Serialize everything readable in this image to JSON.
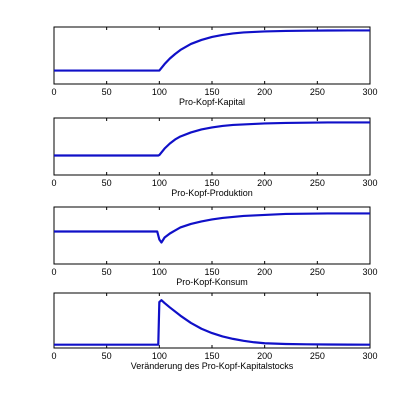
{
  "chart_data": [
    {
      "type": "line",
      "xlabel": "Pro-Kopf-Kapital",
      "xlim": [
        0,
        300
      ],
      "xticks": [
        "0",
        "50",
        "100",
        "150",
        "200",
        "250",
        "300"
      ],
      "ylim": [
        0,
        1
      ],
      "series": [
        {
          "x": [
            0,
            99,
            100,
            105,
            110,
            115,
            120,
            130,
            140,
            150,
            160,
            170,
            180,
            190,
            200,
            220,
            240,
            260,
            280,
            300
          ],
          "y": [
            0.2,
            0.2,
            0.2,
            0.33,
            0.44,
            0.53,
            0.61,
            0.73,
            0.81,
            0.87,
            0.91,
            0.94,
            0.96,
            0.97,
            0.98,
            0.99,
            0.995,
            0.998,
            1.0,
            1.0
          ]
        }
      ]
    },
    {
      "type": "line",
      "xlabel": "Pro-Kopf-Produktion",
      "xlim": [
        0,
        300
      ],
      "xticks": [
        "0",
        "50",
        "100",
        "150",
        "200",
        "250",
        "300"
      ],
      "ylim": [
        0,
        1
      ],
      "series": [
        {
          "x": [
            0,
            99,
            100,
            105,
            110,
            115,
            120,
            130,
            140,
            150,
            160,
            170,
            180,
            190,
            200,
            220,
            240,
            260,
            280,
            300
          ],
          "y": [
            0.32,
            0.32,
            0.33,
            0.46,
            0.56,
            0.64,
            0.7,
            0.78,
            0.84,
            0.88,
            0.91,
            0.93,
            0.94,
            0.95,
            0.96,
            0.97,
            0.975,
            0.98,
            0.98,
            0.98
          ]
        }
      ]
    },
    {
      "type": "line",
      "xlabel": "Pro-Kopf-Konsum",
      "xlim": [
        0,
        300
      ],
      "xticks": [
        "0",
        "50",
        "100",
        "150",
        "200",
        "250",
        "300"
      ],
      "ylim": [
        0,
        1
      ],
      "series": [
        {
          "x": [
            0,
            98,
            100,
            102,
            105,
            110,
            115,
            120,
            130,
            140,
            150,
            160,
            170,
            180,
            190,
            200,
            220,
            240,
            260,
            280,
            300
          ],
          "y": [
            0.58,
            0.58,
            0.42,
            0.36,
            0.46,
            0.54,
            0.6,
            0.66,
            0.73,
            0.78,
            0.82,
            0.85,
            0.87,
            0.89,
            0.9,
            0.91,
            0.93,
            0.935,
            0.94,
            0.94,
            0.94
          ]
        }
      ]
    },
    {
      "type": "line",
      "xlabel": "Veränderung des Pro-Kopf-Kapitalstocks",
      "xlim": [
        0,
        300
      ],
      "xticks": [
        "0",
        "50",
        "100",
        "150",
        "200",
        "250",
        "300"
      ],
      "ylim": [
        0,
        1
      ],
      "series": [
        {
          "x": [
            0,
            99,
            100,
            102,
            105,
            110,
            120,
            130,
            140,
            150,
            160,
            170,
            180,
            190,
            200,
            220,
            240,
            260,
            280,
            300
          ],
          "y": [
            0.0,
            0.0,
            0.88,
            0.92,
            0.86,
            0.77,
            0.6,
            0.45,
            0.33,
            0.24,
            0.17,
            0.12,
            0.08,
            0.05,
            0.03,
            0.015,
            0.008,
            0.004,
            0.002,
            0.0
          ]
        }
      ]
    }
  ]
}
